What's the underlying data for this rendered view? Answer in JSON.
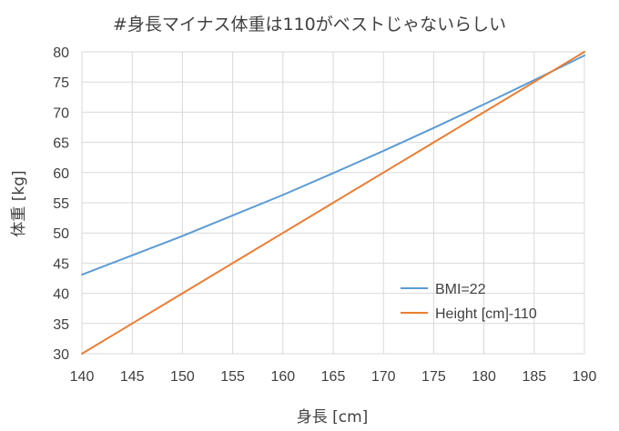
{
  "chart_data": {
    "type": "line",
    "title": "#身長マイナス体重は110がベストじゃないらしい",
    "xlabel": "身長 [cm]",
    "ylabel": "体重 [kg]",
    "xlim": [
      140,
      190
    ],
    "ylim": [
      30,
      80
    ],
    "x_ticks": [
      140,
      145,
      150,
      155,
      160,
      165,
      170,
      175,
      180,
      185,
      190
    ],
    "y_ticks": [
      30,
      35,
      40,
      45,
      50,
      55,
      60,
      65,
      70,
      75,
      80
    ],
    "x_tick_labels": [
      "140",
      "145",
      "150",
      "155",
      "160",
      "165",
      "170",
      "175",
      "180",
      "185",
      "190"
    ],
    "y_tick_labels": [
      "30",
      "35",
      "40",
      "45",
      "50",
      "55",
      "60",
      "65",
      "70",
      "75",
      "80"
    ],
    "grid": true,
    "legend_position": "bottom-right",
    "series": [
      {
        "name": "BMI=22",
        "color": "#5B9BD5",
        "x": [
          140,
          145,
          150,
          155,
          160,
          165,
          170,
          175,
          180,
          185,
          190
        ],
        "y": [
          43.1,
          46.3,
          49.5,
          52.9,
          56.3,
          59.9,
          63.6,
          67.4,
          71.3,
          75.3,
          79.4
        ]
      },
      {
        "name": "Height [cm]-110",
        "color": "#ED7D31",
        "x": [
          140,
          145,
          150,
          155,
          160,
          165,
          170,
          175,
          180,
          185,
          190
        ],
        "y": [
          30,
          35,
          40,
          45,
          50,
          55,
          60,
          65,
          70,
          75,
          80
        ]
      }
    ]
  }
}
